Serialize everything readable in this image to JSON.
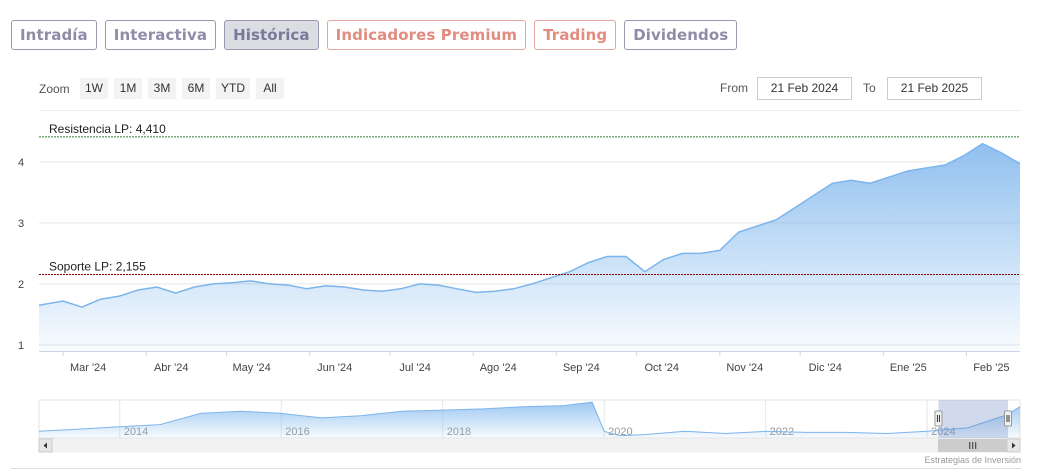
{
  "tabs": [
    {
      "label": "Intradía",
      "style": "normal"
    },
    {
      "label": "Interactiva",
      "style": "normal"
    },
    {
      "label": "Histórica",
      "style": "active"
    },
    {
      "label": "Indicadores Premium",
      "style": "premium"
    },
    {
      "label": "Trading",
      "style": "premium"
    },
    {
      "label": "Dividendos",
      "style": "normal"
    }
  ],
  "range_selector": {
    "zoom_label": "Zoom",
    "buttons": [
      "1W",
      "1M",
      "3M",
      "6M",
      "YTD",
      "All"
    ],
    "from_label": "From",
    "from_value": "21 Feb 2024",
    "to_label": "To",
    "to_value": "21 Feb 2025"
  },
  "credit": "Estrategias de Inversión",
  "colors": {
    "line": "#7cb5ec",
    "fill_top": "#7cb5ec",
    "fill_bottom": "#ffffff",
    "resistance": "#2e7d32",
    "support": "#8b0000"
  },
  "chart_data": {
    "type": "area",
    "title": "",
    "xlabel": "",
    "ylabel": "",
    "ylim": [
      0.9,
      4.72
    ],
    "yticks": [
      1,
      2,
      3,
      4
    ],
    "xrange": [
      "2024-02-21",
      "2025-02-21"
    ],
    "xticks": [
      {
        "date": "2024-03-01",
        "label": "Mar '24"
      },
      {
        "date": "2024-04-01",
        "label": "Abr '24"
      },
      {
        "date": "2024-05-01",
        "label": "May '24"
      },
      {
        "date": "2024-06-01",
        "label": "Jun '24"
      },
      {
        "date": "2024-07-01",
        "label": "Jul '24"
      },
      {
        "date": "2024-08-01",
        "label": "Ago '24"
      },
      {
        "date": "2024-09-01",
        "label": "Sep '24"
      },
      {
        "date": "2024-10-01",
        "label": "Oct '24"
      },
      {
        "date": "2024-11-01",
        "label": "Nov '24"
      },
      {
        "date": "2024-12-01",
        "label": "Dic '24"
      },
      {
        "date": "2025-01-01",
        "label": "Ene '25"
      },
      {
        "date": "2025-02-01",
        "label": "Feb '25"
      }
    ],
    "x": [
      "2024-02-21",
      "2024-03-01",
      "2024-03-08",
      "2024-03-15",
      "2024-03-22",
      "2024-03-29",
      "2024-04-05",
      "2024-04-12",
      "2024-04-19",
      "2024-04-26",
      "2024-05-03",
      "2024-05-10",
      "2024-05-17",
      "2024-05-24",
      "2024-05-31",
      "2024-06-07",
      "2024-06-14",
      "2024-06-21",
      "2024-06-28",
      "2024-07-05",
      "2024-07-12",
      "2024-07-19",
      "2024-07-26",
      "2024-08-02",
      "2024-08-09",
      "2024-08-16",
      "2024-08-23",
      "2024-08-30",
      "2024-09-06",
      "2024-09-13",
      "2024-09-20",
      "2024-09-27",
      "2024-10-04",
      "2024-10-11",
      "2024-10-18",
      "2024-10-25",
      "2024-11-01",
      "2024-11-08",
      "2024-11-15",
      "2024-11-22",
      "2024-11-29",
      "2024-12-06",
      "2024-12-13",
      "2024-12-20",
      "2024-12-27",
      "2025-01-03",
      "2025-01-10",
      "2025-01-17",
      "2025-01-24",
      "2025-01-31",
      "2025-02-07",
      "2025-02-14",
      "2025-02-21"
    ],
    "series": [
      {
        "values": [
          1.65,
          1.72,
          1.62,
          1.75,
          1.8,
          1.9,
          1.95,
          1.85,
          1.95,
          2.0,
          2.02,
          2.05,
          2.0,
          1.98,
          1.92,
          1.97,
          1.95,
          1.9,
          1.88,
          1.92,
          2.0,
          1.98,
          1.92,
          1.86,
          1.88,
          1.92,
          2.0,
          2.1,
          2.2,
          2.35,
          2.45,
          2.45,
          2.2,
          2.4,
          2.5,
          2.5,
          2.55,
          2.85,
          2.95,
          3.05,
          3.25,
          3.45,
          3.65,
          3.7,
          3.65,
          3.75,
          3.85,
          3.9,
          3.95,
          4.1,
          4.3,
          4.15,
          3.97
        ]
      }
    ],
    "annotations": [
      {
        "type": "hline",
        "value": 4.41,
        "label": "Resistencia LP: 4,410",
        "style": "resistance"
      },
      {
        "type": "hline",
        "value": 2.155,
        "label": "Soporte LP: 2,155",
        "style": "support"
      }
    ],
    "legend": "none",
    "grid": true,
    "navigator": {
      "xticks": [
        "2014",
        "2016",
        "2018",
        "2020",
        "2022",
        "2024"
      ],
      "x": [
        2013.0,
        2013.5,
        2014.0,
        2014.5,
        2015.0,
        2015.5,
        2016.0,
        2016.5,
        2017.0,
        2017.5,
        2018.0,
        2018.5,
        2019.0,
        2019.5,
        2019.85,
        2020.0,
        2020.2,
        2020.5,
        2021.0,
        2021.5,
        2022.0,
        2022.5,
        2023.0,
        2023.5,
        2024.0,
        2024.5,
        2025.0,
        2025.15
      ],
      "values": [
        2.0,
        2.2,
        2.4,
        2.6,
        3.6,
        3.8,
        3.6,
        3.2,
        3.4,
        3.8,
        3.9,
        4.0,
        4.2,
        4.3,
        4.6,
        2.0,
        1.6,
        1.7,
        2.0,
        1.8,
        2.0,
        1.9,
        1.9,
        1.8,
        2.0,
        2.3,
        3.5,
        4.2
      ],
      "selection_start": 2024.14,
      "selection_end": 2025.15
    }
  }
}
